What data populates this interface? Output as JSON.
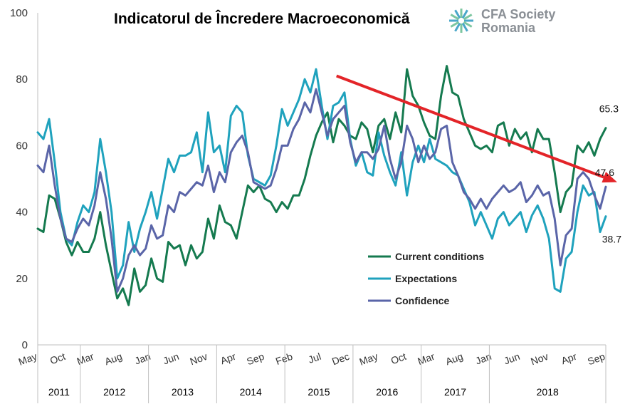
{
  "chart_data": {
    "type": "line",
    "title": "Indicatorul de Încredere Macroeconomică",
    "logo": {
      "text_line1": "CFA Society",
      "text_line2": "Romania",
      "icon": "cfa-society-logo-icon"
    },
    "ylim": [
      0,
      100
    ],
    "yticks": [
      "0",
      "20",
      "40",
      "60",
      "80",
      "100"
    ],
    "xticks": [
      {
        "label": "May",
        "month": 0
      },
      {
        "label": "Oct",
        "month": 5
      },
      {
        "label": "Mar",
        "month": 10
      },
      {
        "label": "Aug",
        "month": 15
      },
      {
        "label": "Jan",
        "month": 20
      },
      {
        "label": "Jun",
        "month": 25
      },
      {
        "label": "Nov",
        "month": 30
      },
      {
        "label": "Apr",
        "month": 35
      },
      {
        "label": "Sep",
        "month": 40
      },
      {
        "label": "Feb",
        "month": 45
      },
      {
        "label": "Jul",
        "month": 50
      },
      {
        "label": "Dec",
        "month": 55
      },
      {
        "label": "May",
        "month": 60
      },
      {
        "label": "Oct",
        "month": 65
      },
      {
        "label": "Mar",
        "month": 70
      },
      {
        "label": "Aug",
        "month": 75
      },
      {
        "label": "Jan",
        "month": 80
      },
      {
        "label": "Jun",
        "month": 85
      },
      {
        "label": "Nov",
        "month": 90
      },
      {
        "label": "Apr",
        "month": 95
      },
      {
        "label": "Sep",
        "month": 100
      }
    ],
    "years": [
      {
        "label": "2011",
        "start": 0,
        "end": 7.5
      },
      {
        "label": "2012",
        "start": 7.5,
        "end": 19.5
      },
      {
        "label": "2013",
        "start": 19.5,
        "end": 31.5
      },
      {
        "label": "2014",
        "start": 31.5,
        "end": 43.5
      },
      {
        "label": "2015",
        "start": 43.5,
        "end": 55.5
      },
      {
        "label": "2016",
        "start": 55.5,
        "end": 67.5
      },
      {
        "label": "2017",
        "start": 67.5,
        "end": 79.5
      },
      {
        "label": "2018",
        "start": 79.5,
        "end": 100.5
      }
    ],
    "series": [
      {
        "name": "Current conditions",
        "color": "#157a4f",
        "values": [
          35,
          34,
          45,
          44,
          38,
          31,
          27,
          31,
          28,
          28,
          32,
          40,
          30,
          22,
          14,
          17,
          12,
          23,
          16,
          18,
          26,
          20,
          19,
          31,
          29,
          30,
          24,
          30,
          26,
          28,
          38,
          32,
          42,
          37,
          36,
          32,
          40,
          48,
          46,
          48,
          44,
          43,
          40,
          43,
          41,
          45,
          45,
          50,
          57,
          63,
          67,
          70,
          61,
          68,
          66,
          63,
          62,
          67,
          65,
          58,
          66,
          68,
          62,
          70,
          64,
          83,
          75,
          72,
          67,
          63,
          62,
          75,
          84,
          76,
          75,
          68,
          64,
          60,
          59,
          60,
          58,
          66,
          67,
          60,
          65,
          62,
          64,
          58,
          65,
          62,
          62,
          52,
          40,
          46,
          48,
          60,
          58,
          61,
          57,
          62,
          65.3
        ]
      },
      {
        "name": "Expectations",
        "color": "#1fa2bd",
        "values": [
          64,
          62,
          68,
          55,
          40,
          32,
          30,
          37,
          42,
          40,
          46,
          62,
          52,
          40,
          20,
          24,
          37,
          28,
          35,
          40,
          46,
          38,
          47,
          56,
          52,
          57,
          57,
          58,
          64,
          52,
          70,
          58,
          60,
          52,
          69,
          72,
          70,
          57,
          50,
          49,
          48,
          51,
          60,
          71,
          66,
          70,
          74,
          80,
          76,
          83,
          72,
          62,
          72,
          73,
          76,
          62,
          54,
          58,
          52,
          51,
          64,
          57,
          52,
          48,
          58,
          45,
          55,
          60,
          55,
          62,
          56,
          55,
          54,
          52,
          51,
          47,
          43,
          36,
          40,
          36,
          32,
          38,
          40,
          36,
          38,
          40,
          34,
          39,
          42,
          38,
          32,
          17,
          16,
          26,
          28,
          40,
          48,
          45,
          46,
          34,
          38.7
        ]
      },
      {
        "name": "Confidence",
        "color": "#5a65a8",
        "values": [
          54,
          52,
          60,
          48,
          38,
          32,
          31,
          35,
          38,
          36,
          42,
          52,
          44,
          32,
          16,
          20,
          27,
          30,
          27,
          29,
          36,
          32,
          33,
          42,
          40,
          46,
          45,
          47,
          49,
          48,
          54,
          46,
          52,
          49,
          58,
          61,
          63,
          58,
          49,
          48,
          47,
          48,
          53,
          60,
          60,
          65,
          68,
          73,
          70,
          77,
          70,
          63,
          68,
          70,
          72,
          61,
          55,
          58,
          58,
          56,
          59,
          66,
          56,
          50,
          55,
          66,
          62,
          55,
          60,
          56,
          58,
          65,
          66,
          55,
          51,
          46,
          44,
          41,
          44,
          41,
          44,
          46,
          48,
          46,
          47,
          49,
          43,
          45,
          48,
          45,
          46,
          38,
          24,
          33,
          35,
          50,
          52,
          50,
          45,
          41,
          47.6
        ]
      }
    ],
    "end_labels": [
      "65.3",
      "47.6",
      "38.7"
    ],
    "trend_arrow": {
      "color": "#e32428",
      "from": [
        52.6,
        81
      ],
      "to": [
        102,
        49
      ]
    },
    "legend": {
      "placement": "center-right",
      "entries": [
        "Current conditions",
        "Expectations",
        "Confidence"
      ]
    },
    "grid": false
  }
}
